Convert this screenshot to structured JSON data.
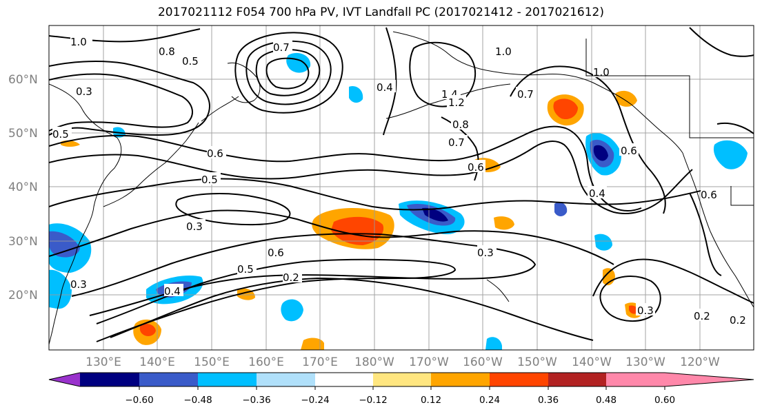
{
  "title": "2017021112 F054 700 hPa PV, IVT Landfall PC (2017021412 - 2017021612)",
  "map": {
    "lat_labels": [
      "20°N",
      "30°N",
      "40°N",
      "50°N",
      "60°N"
    ],
    "lon_labels": [
      "130°E",
      "140°E",
      "150°E",
      "160°E",
      "170°E",
      "180°W",
      "170°W",
      "160°W",
      "150°W",
      "140°W",
      "130°W",
      "120°W"
    ],
    "contour_labels": [
      "1.0",
      "0.7",
      "0.8",
      "0.5",
      "0.6",
      "0.4",
      "1.0",
      "1.4",
      "1.2",
      "0.8",
      "0.7",
      "0.6",
      "0.5",
      "0.3",
      "0.6",
      "0.5",
      "0.2",
      "0.3",
      "0.4",
      "0.3",
      "0.2",
      "0.2",
      "0.6",
      "0.3",
      "0.6",
      "0.4",
      "0.7",
      "1.0",
      "0.3",
      "0.5"
    ]
  },
  "colorbar": {
    "ticks": [
      "−0.60",
      "−0.48",
      "−0.36",
      "−0.24",
      "−0.12",
      "0.12",
      "0.24",
      "0.36",
      "0.48",
      "0.60"
    ],
    "colors": [
      "#9932cc",
      "#000080",
      "#3a5bc9",
      "#00bfff",
      "#b0e0fa",
      "#ffffff",
      "#ffe680",
      "#ffa500",
      "#ff4500",
      "#b22222",
      "#ff88aa"
    ]
  }
}
